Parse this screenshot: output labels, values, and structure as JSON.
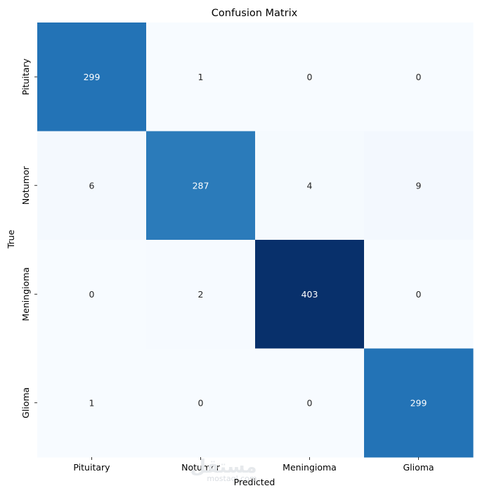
{
  "chart_data": {
    "type": "heatmap",
    "title": "Confusion Matrix",
    "xlabel": "Predicted",
    "ylabel": "True",
    "x_categories": [
      "Pituitary",
      "Notumor",
      "Meningioma",
      "Glioma"
    ],
    "y_categories": [
      "Pituitary",
      "Notumor",
      "Meningioma",
      "Glioma"
    ],
    "values": [
      [
        299,
        1,
        0,
        0
      ],
      [
        6,
        287,
        4,
        9
      ],
      [
        0,
        2,
        403,
        0
      ],
      [
        1,
        0,
        0,
        299
      ]
    ],
    "colormap": "Blues",
    "colorbar": false,
    "annotated": true
  },
  "watermark": {
    "arabic": "مستقل",
    "latin": "mostaql.com"
  },
  "colors": {
    "low": "#f7fbff",
    "high": "#08306b"
  }
}
